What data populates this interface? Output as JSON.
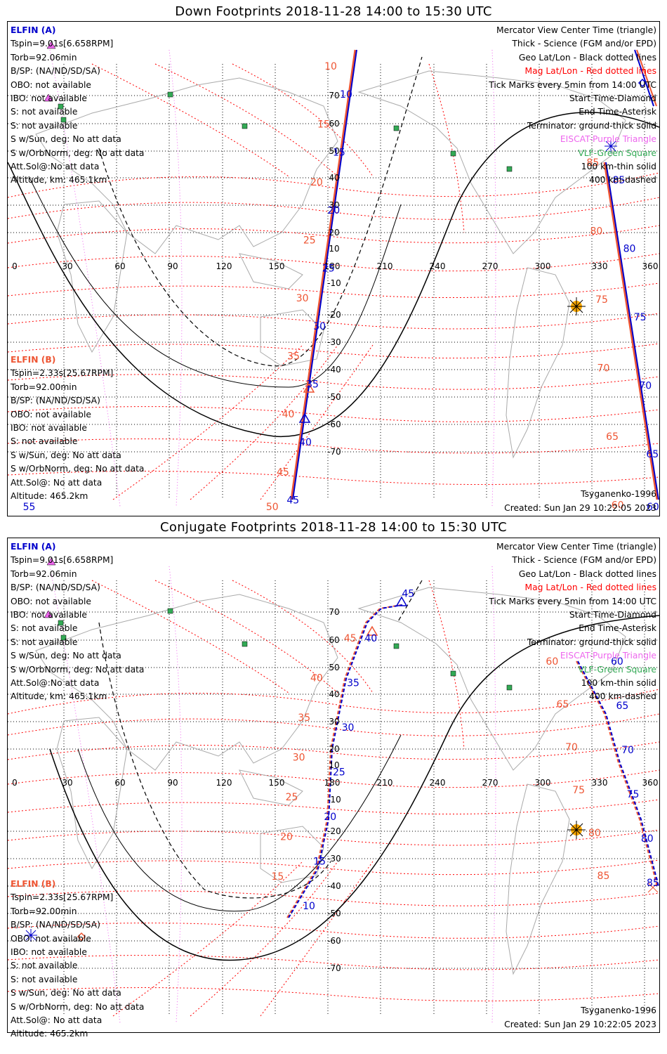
{
  "panels": [
    {
      "title": "Down Footprints 2018-11-28 14:00 to 15:30 UTC",
      "elfin_a": {
        "header": "ELFIN (A)",
        "lines": [
          "Tspin=9.01s[6.658RPM]",
          "Torb=92.06min",
          "B/SP: (NA/ND/SD/SA)",
          "OBO: not available",
          "IBO: not available",
          "S: not available",
          "S: not available",
          "S w/Sun, deg: No att data",
          "S w/OrbNorm, deg: No att data",
          "Att.Sol@:No att data",
          "Altitude, km: 465.1km"
        ]
      },
      "elfin_b": {
        "header": "ELFIN (B)",
        "lines": [
          "Tspin=2.33s[25.67RPM]",
          "Torb=92.00min",
          "B/SP: (NA/ND/SD/SA)",
          "OBO: not available",
          "IBO: not available",
          "S: not available",
          "S w/Sun, deg: No att data",
          "S w/OrbNorm, deg: No att data",
          "Att.Sol@: No att data",
          "Altitude: 465.2km"
        ]
      },
      "legend": [
        {
          "text": "Mercator View Center Time (triangle)",
          "color": "#000000"
        },
        {
          "text": "Thick - Science (FGM and/or EPD)",
          "color": "#000000"
        },
        {
          "text": "Geo Lat/Lon - Black dotted lines",
          "color": "#000000"
        },
        {
          "text": "Mag Lat/Lon - Red dotted lines",
          "color": "#ff0000"
        },
        {
          "text": "Tick Marks every 5min from 14:00 UTC",
          "color": "#000000"
        },
        {
          "text": "Start Time-Diamond",
          "color": "#000000"
        },
        {
          "text": "End Time-Asterisk",
          "color": "#000000"
        },
        {
          "text": "Terminator: ground-thick solid",
          "color": "#000000"
        },
        {
          "text": "EISCAT-Purple Triangle",
          "color": "#ee66ee"
        },
        {
          "text": "VLF-Green Square",
          "color": "#33aa55"
        },
        {
          "text": "100 km-thin solid",
          "color": "#000000"
        },
        {
          "text": "400 km-dashed",
          "color": "#000000"
        }
      ],
      "model": "Tsyganenko-1996",
      "created": "Created: Sun Jan 29 10:22:05 2023",
      "lon_ticks": [
        "0",
        "30",
        "60",
        "90",
        "120",
        "150",
        "180",
        "210",
        "240",
        "270",
        "300",
        "330",
        "360"
      ],
      "lat_ticks": [
        "70",
        "60",
        "50",
        "40",
        "30",
        "20",
        "10",
        "-10",
        "-20",
        "-30",
        "-40",
        "-50",
        "-60",
        "-70"
      ],
      "track_a_labels": [
        {
          "text": "10",
          "lon": 182
        },
        {
          "text": "15",
          "lon": 178
        },
        {
          "text": "20",
          "lon": 175
        },
        {
          "text": "25",
          "lon": 172
        },
        {
          "text": "30",
          "lon": 167
        },
        {
          "text": "35",
          "lon": 163
        },
        {
          "text": "40",
          "lon": 159
        },
        {
          "text": "45",
          "lon": 152
        },
        {
          "text": "55",
          "lon": 3
        },
        {
          "text": "60",
          "lon": 358
        },
        {
          "text": "65",
          "lon": 355
        },
        {
          "text": "70",
          "lon": 351
        },
        {
          "text": "75",
          "lon": 348
        },
        {
          "text": "80",
          "lon": 342
        },
        {
          "text": "85",
          "lon": 336
        }
      ],
      "track_b_labels": [
        {
          "text": "10",
          "lon": 186
        },
        {
          "text": "15",
          "lon": 182
        },
        {
          "text": "20",
          "lon": 178
        },
        {
          "text": "25",
          "lon": 174
        },
        {
          "text": "30",
          "lon": 170
        },
        {
          "text": "35",
          "lon": 165
        },
        {
          "text": "40",
          "lon": 162
        },
        {
          "text": "45",
          "lon": 159
        },
        {
          "text": "50",
          "lon": 153
        },
        {
          "text": "60",
          "lon": 348
        },
        {
          "text": "65",
          "lon": 345
        },
        {
          "text": "70",
          "lon": 340
        },
        {
          "text": "75",
          "lon": 339
        },
        {
          "text": "80",
          "lon": 336
        },
        {
          "text": "85",
          "lon": 334
        }
      ]
    },
    {
      "title": "Conjugate Footprints 2018-11-28 14:00 to 15:30 UTC",
      "elfin_a": {
        "header": "ELFIN (A)",
        "lines": [
          "Tspin=9.01s[6.658RPM]",
          "Torb=92.06min",
          "B/SP: (NA/ND/SD/SA)",
          "OBO: not available",
          "IBO: not available",
          "S: not available",
          "S: not available",
          "S w/Sun, deg: No att data",
          "S w/OrbNorm, deg: No att data",
          "Att.Sol@:No att data",
          "Altitude, km: 465.1km"
        ]
      },
      "elfin_b": {
        "header": "ELFIN (B)",
        "lines": [
          "Tspin=2.33s[25.67RPM]",
          "Torb=92.00min",
          "B/SP: (NA/ND/SD/SA)",
          "OBO: not available",
          "IBO: not available",
          "S: not available",
          "S: not available",
          "S w/Sun, deg: No att data",
          "S w/OrbNorm, deg: No att data",
          "Att.Sol@: No att data",
          "Altitude: 465.2km"
        ]
      },
      "legend": [
        {
          "text": "Mercator View Center Time (triangle)",
          "color": "#000000"
        },
        {
          "text": "Thick - Science (FGM and/or EPD)",
          "color": "#000000"
        },
        {
          "text": "Geo Lat/Lon - Black dotted lines",
          "color": "#000000"
        },
        {
          "text": "Mag Lat/Lon - Red dotted lines",
          "color": "#ff0000"
        },
        {
          "text": "Tick Marks every 5min from 14:00 UTC",
          "color": "#000000"
        },
        {
          "text": "Start Time-Diamond",
          "color": "#000000"
        },
        {
          "text": "End Time-Asterisk",
          "color": "#000000"
        },
        {
          "text": "Terminator: ground-thick solid",
          "color": "#000000"
        },
        {
          "text": "EISCAT-Purple Triangle",
          "color": "#ee66ee"
        },
        {
          "text": "VLF-Green Square",
          "color": "#33aa55"
        },
        {
          "text": "100 km-thin solid",
          "color": "#000000"
        },
        {
          "text": "400 km-dashed",
          "color": "#000000"
        }
      ],
      "model": "Tsyganenko-1996",
      "created": "Created: Sun Jan 29 10:22:05 2023",
      "lon_ticks": [
        "0",
        "30",
        "60",
        "90",
        "120",
        "150",
        "180",
        "210",
        "240",
        "270",
        "300",
        "330",
        "360"
      ],
      "lat_ticks": [
        "70",
        "60",
        "50",
        "40",
        "30",
        "20",
        "10",
        "-10",
        "-20",
        "-30",
        "-40",
        "-50",
        "-60",
        "-70"
      ],
      "track_a_labels": [
        {
          "text": "45",
          "lon": 217
        },
        {
          "text": "40",
          "lon": 196
        },
        {
          "text": "35",
          "lon": 186
        },
        {
          "text": "30",
          "lon": 183
        },
        {
          "text": "25",
          "lon": 178
        },
        {
          "text": "20",
          "lon": 173
        },
        {
          "text": "15",
          "lon": 167
        },
        {
          "text": "10",
          "lon": 161
        },
        {
          "text": "60",
          "lon": 335
        },
        {
          "text": "65",
          "lon": 338
        },
        {
          "text": "70",
          "lon": 341
        },
        {
          "text": "75",
          "lon": 344
        },
        {
          "text": "80",
          "lon": 352
        },
        {
          "text": "85",
          "lon": 357
        }
      ],
      "track_b_labels": [
        {
          "text": "45",
          "lon": 197
        },
        {
          "text": "40",
          "lon": 178
        },
        {
          "text": "35",
          "lon": 171
        },
        {
          "text": "30",
          "lon": 168
        },
        {
          "text": "25",
          "lon": 164
        },
        {
          "text": "20",
          "lon": 161
        },
        {
          "text": "15",
          "lon": 156
        },
        {
          "text": "60",
          "lon": 311
        },
        {
          "text": "65",
          "lon": 317
        },
        {
          "text": "70",
          "lon": 322
        },
        {
          "text": "75",
          "lon": 326
        },
        {
          "text": "80",
          "lon": 335
        },
        {
          "text": "85",
          "lon": 340
        }
      ]
    }
  ],
  "colors": {
    "elfin_a": "#0000cc",
    "elfin_b": "#ee5533",
    "mag_grid": "#ff0000",
    "eiscat": "#ee66ee",
    "vlf": "#33aa55",
    "sun": "#ffaa00"
  }
}
